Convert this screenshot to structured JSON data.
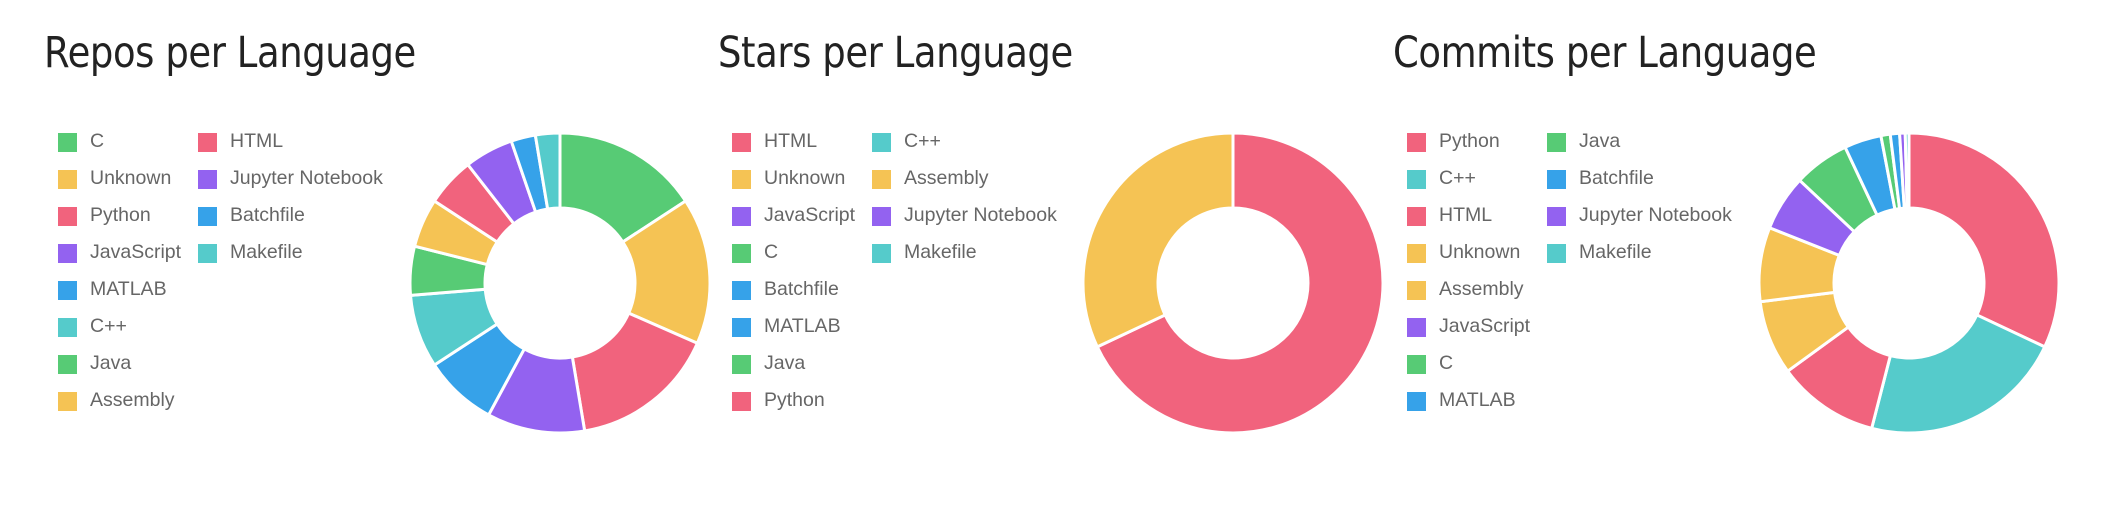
{
  "colors": {
    "green": "#57cb75",
    "yellow": "#f5c354",
    "red": "#f1637d",
    "purple": "#9362f0",
    "blue": "#36a2e9",
    "teal": "#55cbcb"
  },
  "chart_data": [
    {
      "type": "pie",
      "variant": "donut",
      "title": "Repos per Language",
      "legend_position": "left",
      "categories": [
        "C",
        "Unknown",
        "Python",
        "JavaScript",
        "MATLAB",
        "C++",
        "Java",
        "Assembly",
        "HTML",
        "Jupyter Notebook",
        "Batchfile",
        "Makefile"
      ],
      "values": [
        6,
        6,
        6,
        4,
        3,
        3,
        2,
        2,
        2,
        2,
        1,
        1
      ],
      "colors": [
        "green",
        "yellow",
        "red",
        "purple",
        "blue",
        "teal",
        "green",
        "yellow",
        "red",
        "purple",
        "blue",
        "teal"
      ]
    },
    {
      "type": "pie",
      "variant": "donut",
      "title": "Stars per Language",
      "legend_position": "left",
      "categories": [
        "HTML",
        "Unknown",
        "JavaScript",
        "C",
        "Batchfile",
        "MATLAB",
        "Java",
        "Python",
        "C++",
        "Assembly",
        "Jupyter Notebook",
        "Makefile"
      ],
      "values": [
        68,
        32,
        0,
        0,
        0,
        0,
        0,
        0,
        0,
        0,
        0,
        0
      ],
      "colors": [
        "red",
        "yellow",
        "purple",
        "green",
        "blue",
        "blue",
        "green",
        "red",
        "teal",
        "yellow",
        "purple",
        "teal"
      ]
    },
    {
      "type": "pie",
      "variant": "donut",
      "title": "Commits per Language",
      "legend_position": "left",
      "categories": [
        "Python",
        "C++",
        "HTML",
        "Unknown",
        "Assembly",
        "JavaScript",
        "C",
        "MATLAB",
        "Java",
        "Batchfile",
        "Jupyter Notebook",
        "Makefile"
      ],
      "values": [
        32,
        22,
        11,
        8,
        8,
        6,
        6,
        4,
        1,
        1,
        0.6,
        0.4
      ],
      "colors": [
        "red",
        "teal",
        "red",
        "yellow",
        "yellow",
        "purple",
        "green",
        "blue",
        "green",
        "blue",
        "purple",
        "teal"
      ]
    }
  ]
}
